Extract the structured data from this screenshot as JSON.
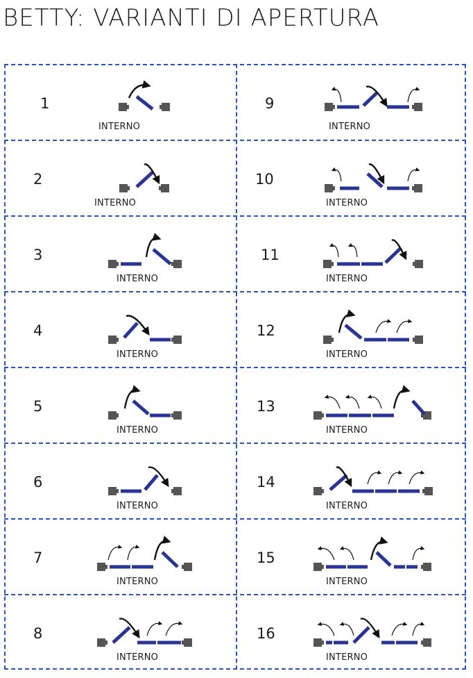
{
  "title": "BETTY: VARIANTI DI APERTURA",
  "colors": {
    "grid": "#2a52be",
    "panel": "#2a3593",
    "post": "#555555",
    "arrow": "#111111"
  },
  "variants": [
    {
      "number": "1",
      "label": "INTERNO",
      "col": 0,
      "row": 0
    },
    {
      "number": "2",
      "label": "INTERNO",
      "col": 0,
      "row": 1
    },
    {
      "number": "3",
      "label": "INTERNO",
      "col": 0,
      "row": 2
    },
    {
      "number": "4",
      "label": "INTERNO",
      "col": 0,
      "row": 3
    },
    {
      "number": "5",
      "label": "INTERNO",
      "col": 0,
      "row": 4
    },
    {
      "number": "6",
      "label": "INTERNO",
      "col": 0,
      "row": 5
    },
    {
      "number": "7",
      "label": "INTERNO",
      "col": 0,
      "row": 6
    },
    {
      "number": "8",
      "label": "INTERNO",
      "col": 0,
      "row": 7
    },
    {
      "number": "9",
      "label": "INTERNO",
      "col": 1,
      "row": 0
    },
    {
      "number": "10",
      "label": "INTERNO",
      "col": 1,
      "row": 1
    },
    {
      "number": "11",
      "label": "INTERNO",
      "col": 1,
      "row": 2
    },
    {
      "number": "12",
      "label": "INTERNO",
      "col": 1,
      "row": 3
    },
    {
      "number": "13",
      "label": "INTERNO",
      "col": 1,
      "row": 4
    },
    {
      "number": "14",
      "label": "INTERNO",
      "col": 1,
      "row": 5
    },
    {
      "number": "15",
      "label": "INTERNO",
      "col": 1,
      "row": 6
    },
    {
      "number": "16",
      "label": "INTERNO",
      "col": 1,
      "row": 7
    }
  ]
}
